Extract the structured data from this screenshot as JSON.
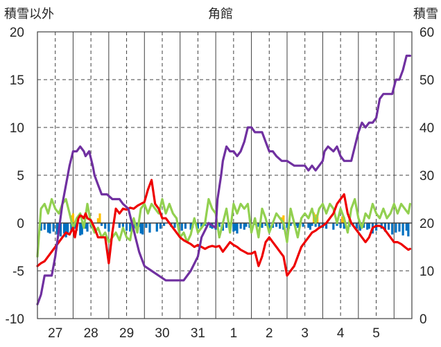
{
  "chart_data": {
    "type": "line",
    "title": "角館",
    "left_axis_title": "積雪以外",
    "right_axis_title": "積雪",
    "ylim": [
      -10,
      20
    ],
    "y_ticks": [
      "20",
      "15",
      "10",
      "5",
      "0",
      "-5",
      "-10"
    ],
    "y2lim": [
      0,
      60
    ],
    "y2_ticks": [
      "60",
      "50",
      "40",
      "30",
      "20",
      "10",
      "0"
    ],
    "x_range": [
      0,
      10.5
    ],
    "categories": [
      "27",
      "28",
      "29",
      "30",
      "31",
      "1",
      "2",
      "3",
      "4",
      "5"
    ],
    "grid": true,
    "colors": {
      "temperature": "#ee0000",
      "wind": "#92d050",
      "snow_depth": "#7030a0",
      "precipitation": "#0070c0",
      "sunshine": "#ffc000"
    },
    "series": [
      {
        "name": "snow_depth",
        "axis": "right",
        "color": "#7030a0",
        "x": [
          0,
          0.1,
          0.2,
          0.4,
          0.5,
          0.7,
          0.9,
          1.0,
          1.1,
          1.2,
          1.3,
          1.35,
          1.45,
          1.55,
          1.6,
          1.7,
          1.75,
          1.8,
          1.95,
          2.1,
          2.3,
          2.4,
          2.55,
          2.65,
          2.75,
          2.85,
          2.9,
          3.0,
          3.2,
          3.4,
          3.6,
          3.9,
          4.1,
          4.3,
          4.5,
          4.6,
          4.8,
          5.0,
          5.05,
          5.15,
          5.2,
          5.3,
          5.4,
          5.5,
          5.6,
          5.7,
          5.8,
          5.9,
          6.0,
          6.1,
          6.2,
          6.3,
          6.4,
          6.5,
          6.6,
          6.7,
          6.85,
          7.0,
          7.2,
          7.3,
          7.4,
          7.5,
          7.6,
          7.7,
          7.8,
          7.9,
          8.0,
          8.05,
          8.15,
          8.3,
          8.4,
          8.5,
          8.6,
          8.8,
          9.0,
          9.1,
          9.2,
          9.3,
          9.4,
          9.5,
          9.6,
          9.7,
          9.8,
          9.95,
          10.05,
          10.15,
          10.25,
          10.35,
          10.45
        ],
        "y": [
          3,
          5,
          9,
          9,
          13,
          24,
          32,
          35,
          35,
          36,
          35,
          34,
          35,
          32,
          30,
          28,
          27,
          26,
          26,
          25,
          25,
          24,
          23,
          20,
          17,
          14,
          13,
          11,
          10,
          9,
          8,
          8,
          8,
          10,
          13,
          17,
          20,
          19,
          25,
          30,
          33,
          36,
          35,
          35,
          34,
          35,
          37,
          40,
          40,
          39,
          39,
          39,
          37,
          35,
          35,
          34,
          33,
          33,
          32,
          32,
          32,
          32,
          31,
          32,
          31,
          32,
          33,
          35,
          36,
          35,
          36,
          34,
          33,
          33,
          39,
          41,
          40,
          41,
          41,
          42,
          46,
          47,
          47,
          47,
          50,
          50,
          52,
          55,
          55
        ]
      },
      {
        "name": "temperature",
        "axis": "left",
        "color": "#ee0000",
        "x": [
          0,
          0.1,
          0.2,
          0.3,
          0.4,
          0.5,
          0.6,
          0.7,
          0.8,
          0.9,
          1.0,
          1.05,
          1.1,
          1.15,
          1.2,
          1.25,
          1.3,
          1.35,
          1.4,
          1.5,
          1.6,
          1.7,
          1.8,
          1.9,
          2.0,
          2.1,
          2.2,
          2.3,
          2.4,
          2.5,
          2.6,
          2.7,
          2.8,
          2.9,
          3.0,
          3.1,
          3.2,
          3.3,
          3.4,
          3.5,
          3.6,
          3.7,
          3.8,
          3.9,
          4.0,
          4.1,
          4.2,
          4.3,
          4.4,
          4.5,
          4.6,
          4.7,
          4.8,
          4.9,
          5.0,
          5.1,
          5.2,
          5.3,
          5.4,
          5.5,
          5.6,
          5.7,
          5.8,
          5.9,
          6.0,
          6.1,
          6.2,
          6.3,
          6.4,
          6.5,
          6.6,
          6.7,
          6.8,
          6.9,
          7.0,
          7.1,
          7.2,
          7.3,
          7.4,
          7.5,
          7.6,
          7.7,
          7.8,
          7.9,
          8.0,
          8.1,
          8.2,
          8.3,
          8.4,
          8.5,
          8.6,
          8.7,
          8.8,
          8.9,
          9.0,
          9.1,
          9.2,
          9.3,
          9.4,
          9.5,
          9.6,
          9.7,
          9.8,
          9.9,
          10.0,
          10.1,
          10.2,
          10.3,
          10.4,
          10.45
        ],
        "y": [
          -4.5,
          -4.2,
          -4.0,
          -3.5,
          -3.0,
          -2.5,
          -2.0,
          -1.5,
          -1.0,
          -1.2,
          -0.5,
          -1.5,
          -0.5,
          0.5,
          0.8,
          0.7,
          0.5,
          1.0,
          0.5,
          0.3,
          -0.5,
          -1.5,
          -1.5,
          -1.5,
          -4.2,
          -1.0,
          1.5,
          1.0,
          1.5,
          1.4,
          1.6,
          1.5,
          1.8,
          2.0,
          2.2,
          3.5,
          4.5,
          2.0,
          1.5,
          0.5,
          0.5,
          0.0,
          -0.5,
          -1.0,
          -1.5,
          -1.8,
          -2.0,
          -2.2,
          -2.5,
          -2.3,
          -2.5,
          -2.7,
          -2.5,
          -2.4,
          -2.5,
          -2.4,
          -3.0,
          -2.5,
          -2.0,
          -2.3,
          -2.5,
          -2.8,
          -3.0,
          -3.2,
          -3.2,
          -3.0,
          -4.5,
          -3.5,
          -2.0,
          -1.5,
          -2.0,
          -2.5,
          -3.0,
          -3.5,
          -5.5,
          -5.0,
          -4.5,
          -3.5,
          -2.5,
          -2.0,
          -1.5,
          -1.0,
          -0.8,
          -0.5,
          -0.3,
          0.0,
          0.5,
          1.0,
          2.0,
          2.5,
          3.0,
          1.0,
          0.0,
          -0.5,
          -1.0,
          -1.5,
          -2.0,
          -1.5,
          -0.5,
          -0.3,
          -0.3,
          -0.5,
          -1.0,
          -1.5,
          -2.0,
          -2.0,
          -2.2,
          -2.5,
          -2.8,
          -2.7
        ]
      },
      {
        "name": "wind",
        "axis": "left",
        "color": "#92d050",
        "x": [
          0,
          0.1,
          0.2,
          0.3,
          0.4,
          0.5,
          0.6,
          0.7,
          0.8,
          0.9,
          1.0,
          1.1,
          1.2,
          1.3,
          1.4,
          1.5,
          1.6,
          1.7,
          1.8,
          1.9,
          2.0,
          2.1,
          2.2,
          2.3,
          2.4,
          2.5,
          2.6,
          2.7,
          2.8,
          2.9,
          3.0,
          3.1,
          3.2,
          3.3,
          3.4,
          3.5,
          3.6,
          3.7,
          3.8,
          3.9,
          4.0,
          4.1,
          4.2,
          4.3,
          4.4,
          4.5,
          4.6,
          4.7,
          4.8,
          4.9,
          5.0,
          5.1,
          5.2,
          5.3,
          5.4,
          5.5,
          5.6,
          5.7,
          5.8,
          5.9,
          6.0,
          6.1,
          6.2,
          6.3,
          6.4,
          6.5,
          6.6,
          6.7,
          6.8,
          6.9,
          7.0,
          7.1,
          7.2,
          7.3,
          7.4,
          7.5,
          7.6,
          7.7,
          7.8,
          7.9,
          8.0,
          8.1,
          8.2,
          8.3,
          8.4,
          8.5,
          8.6,
          8.7,
          8.8,
          8.9,
          9.0,
          9.1,
          9.2,
          9.3,
          9.4,
          9.5,
          9.6,
          9.7,
          9.8,
          9.9,
          10.0,
          10.1,
          10.2,
          10.3,
          10.4,
          10.45
        ],
        "y": [
          -3.5,
          1.5,
          2.0,
          1.0,
          2.5,
          1.5,
          1.0,
          2.0,
          2.5,
          1.0,
          -0.5,
          0.5,
          1.0,
          -0.5,
          2.0,
          0.0,
          -1.0,
          -0.5,
          -1.5,
          -1.0,
          -2.0,
          -1.5,
          -1.0,
          -1.8,
          -0.5,
          -1.5,
          -1.8,
          0.5,
          -1.0,
          1.5,
          2.0,
          1.0,
          2.0,
          1.5,
          1.0,
          2.5,
          1.0,
          2.0,
          1.0,
          0.5,
          -1.5,
          -1.0,
          -2.0,
          -1.2,
          0.5,
          -1.0,
          -0.5,
          0.0,
          2.5,
          1.5,
          1.0,
          -1.5,
          0.0,
          1.5,
          -1.0,
          2.0,
          1.0,
          2.0,
          1.5,
          2.0,
          -1.0,
          0.5,
          -1.5,
          1.5,
          0.5,
          -1.0,
          0.0,
          1.0,
          0.5,
          0.0,
          -2.0,
          1.5,
          0.0,
          -1.5,
          0.5,
          1.0,
          0.5,
          1.5,
          0.0,
          1.5,
          2.0,
          1.0,
          2.0,
          1.5,
          0.0,
          1.5,
          0.5,
          -1.0,
          1.5,
          2.5,
          0.5,
          -0.5,
          1.0,
          0.5,
          2.0,
          1.0,
          0.5,
          1.5,
          0.5,
          1.0,
          2.0,
          1.0,
          2.0,
          1.5,
          1.0,
          2.0
        ]
      },
      {
        "name": "precipitation",
        "axis": "left",
        "type": "bar",
        "color": "#0070c0",
        "x": [
          0.1,
          0.2,
          0.3,
          0.35,
          0.45,
          0.55,
          0.6,
          0.65,
          0.75,
          0.8,
          0.85,
          0.95,
          1.05,
          1.1,
          1.2,
          1.25,
          1.35,
          1.4,
          1.5,
          1.8,
          1.9,
          2.0,
          2.3,
          2.4,
          2.5,
          2.6,
          2.7,
          2.8,
          2.85,
          2.9,
          2.95,
          3.05,
          3.15,
          3.35,
          3.45,
          3.55,
          3.75,
          3.85,
          3.95,
          4.05,
          4.15,
          4.3,
          4.35,
          4.5,
          4.6,
          4.7,
          4.8,
          4.85,
          4.9,
          5.0,
          5.1,
          5.2,
          5.3,
          5.4,
          5.5,
          5.55,
          5.6,
          5.7,
          5.8,
          5.85,
          5.95,
          6.1,
          6.2,
          6.3,
          6.4,
          6.5,
          6.6,
          6.7,
          6.8,
          6.9,
          7.0,
          7.05,
          7.1,
          7.25,
          7.3,
          7.35,
          7.45,
          7.6,
          7.65,
          7.7,
          7.8,
          7.9,
          8.0,
          8.1,
          8.3,
          8.4,
          8.5,
          8.6,
          8.75,
          8.85,
          8.95,
          9.05,
          9.15,
          9.25,
          9.3,
          9.4,
          9.5,
          9.65,
          9.75,
          9.85,
          9.95,
          10.05,
          10.15,
          10.25,
          10.35,
          10.4
        ],
        "y": [
          -0.8,
          -0.7,
          -1.0,
          -1.1,
          -0.9,
          -1.2,
          -1.0,
          -1.4,
          -1.1,
          -1.5,
          -1.2,
          -0.9,
          -0.6,
          -0.8,
          -1.3,
          -1.2,
          -0.6,
          -0.9,
          -0.4,
          -0.3,
          -0.6,
          -0.9,
          -0.5,
          -0.4,
          -0.8,
          -0.9,
          -0.6,
          -0.7,
          -0.4,
          -1.1,
          -1.2,
          -0.5,
          -1.0,
          -0.9,
          -0.6,
          -0.3,
          -0.4,
          -0.5,
          -0.6,
          -0.8,
          -0.6,
          -0.7,
          -0.5,
          -0.6,
          -0.4,
          -0.3,
          -0.2,
          -0.5,
          -0.6,
          -0.7,
          -0.4,
          -0.8,
          -0.5,
          -0.7,
          -0.9,
          -0.8,
          -1.1,
          -0.6,
          -0.7,
          -0.4,
          -0.5,
          -0.2,
          -0.4,
          -0.5,
          -0.3,
          -0.6,
          -0.5,
          -0.4,
          -0.6,
          -0.7,
          -0.5,
          -0.6,
          -0.3,
          -0.3,
          -0.5,
          -0.4,
          -0.4,
          -0.5,
          -0.7,
          -0.3,
          -0.4,
          -0.4,
          -0.5,
          -0.6,
          -0.7,
          -0.3,
          -0.5,
          -0.6,
          -0.4,
          -0.3,
          -0.6,
          -0.8,
          -0.5,
          -0.7,
          -0.6,
          -1.1,
          -0.8,
          -0.6,
          -0.9,
          -0.7,
          -1.2,
          -1.0,
          -0.9,
          -1.3,
          -0.8,
          -1.4
        ]
      },
      {
        "name": "sunshine",
        "axis": "left",
        "type": "bar",
        "color": "#ffc000",
        "x": [
          0.95,
          1.0,
          1.7,
          1.75,
          6.85,
          6.9,
          7.75,
          7.8,
          7.85,
          8.55,
          8.6
        ],
        "y": [
          0.8,
          1.0,
          0.5,
          1.0,
          0.6,
          0.8,
          1.1,
          0.9,
          0.7,
          0.7,
          0.6
        ]
      }
    ]
  }
}
